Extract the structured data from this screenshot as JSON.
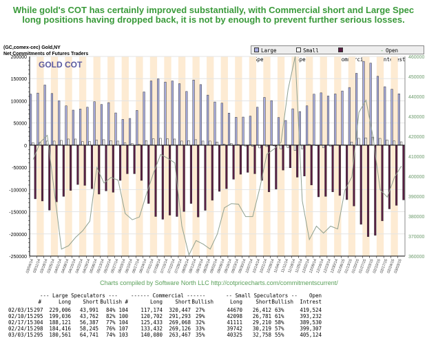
{
  "headline": [
    "While gold's COT has certainly improved substantially, with Commercial short and Large Spec",
    "long  positions  having dropped back, it is not by enough to prevent further serious losses."
  ],
  "chart_info": {
    "symbol": "(GC,comex-cec) Gold,NY",
    "subtitle": "Net Commitments of Futures Traders",
    "watermark": "GOLD COT"
  },
  "legend": [
    "Large Spec",
    "Small Spec",
    "Commercial",
    "Open Interest"
  ],
  "colors": {
    "large_spec": "#a9addf",
    "small_spec": "#ffffff",
    "commercial": "#5a1d44",
    "open_interest": "#8fa08f",
    "stripe": "#fdebd3",
    "headline": "#3a9a3a"
  },
  "credits": "Charts compiled by Software North LLC  http://cotpricecharts.com/commitmentscurrent/",
  "chart_data": {
    "type": "bar",
    "left_axis": {
      "ylim": [
        -250000,
        200000
      ],
      "ticks": [
        "200000",
        "150000",
        "100000",
        "50000",
        "0",
        "-50000",
        "-100000",
        "-150000",
        "-200000",
        "-250000"
      ]
    },
    "right_axis": {
      "ylim": [
        360000,
        460000
      ],
      "ticks": [
        "460000",
        "450000",
        "440000",
        "430000",
        "420000",
        "410000",
        "400000",
        "390000",
        "380000",
        "370000",
        "360000"
      ]
    },
    "grid": true,
    "legend_placement": "top-right",
    "categories": [
      "03/04/14",
      "03/11/14",
      "03/18/14",
      "03/25/14",
      "04/01/14",
      "04/08/14",
      "04/15/14",
      "04/22/14",
      "04/29/14",
      "05/06/14",
      "05/13/14",
      "05/20/14",
      "05/27/14",
      "06/03/14",
      "06/10/14",
      "06/17/14",
      "06/24/14",
      "07/01/14",
      "07/08/14",
      "07/15/14",
      "07/22/14",
      "07/29/14",
      "08/05/14",
      "08/12/14",
      "08/19/14",
      "08/26/14",
      "09/02/14",
      "09/09/14",
      "09/16/14",
      "09/23/14",
      "09/30/14",
      "10/07/14",
      "10/14/14",
      "10/21/14",
      "10/28/14",
      "11/04/14",
      "11/11/14",
      "11/18/14",
      "11/25/14",
      "12/02/14",
      "12/09/14",
      "12/16/14",
      "12/23/14",
      "12/30/14",
      "01/06/15",
      "01/13/15",
      "01/20/15",
      "01/27/15",
      "02/03/15",
      "02/10/15",
      "02/17/15",
      "02/24/15",
      "03/03/15"
    ],
    "series": [
      {
        "name": "Large Spec",
        "type": "bar",
        "axis": "left",
        "values": [
          115000,
          117500,
          135600,
          116500,
          100000,
          88700,
          79000,
          81500,
          85600,
          98000,
          91800,
          95900,
          72700,
          58200,
          60300,
          78400,
          120000,
          144800,
          149500,
          142300,
          144800,
          138700,
          121100,
          146900,
          136600,
          112900,
          97400,
          94800,
          72200,
          62900,
          63400,
          65500,
          85600,
          107700,
          100500,
          62400,
          55700,
          82000,
          75800,
          88700,
          115000,
          118000,
          110800,
          115500,
          122200,
          130000,
          162000,
          189000,
          185015,
          155274,
          131734,
          126171,
          115820
        ]
      },
      {
        "name": "Small Spec",
        "type": "bar",
        "axis": "left",
        "values": [
          5700,
          6200,
          9300,
          9300,
          10800,
          13900,
          13900,
          8200,
          8200,
          11300,
          12400,
          10300,
          9300,
          5200,
          4100,
          2000,
          10300,
          14400,
          15500,
          14400,
          13900,
          9300,
          10300,
          12400,
          9300,
          9300,
          7200,
          2600,
          4100,
          1500,
          -2000,
          -2600,
          -6200,
          -3100,
          -1500,
          -8200,
          -5200,
          -11900,
          -8200,
          2000,
          -1000,
          -5700,
          -2000,
          500,
          500,
          7200,
          15500,
          16500,
          18258,
          15317,
          11901,
          9523,
          7567
        ]
      },
      {
        "name": "Commercial",
        "type": "bar",
        "axis": "left",
        "values": [
          -121000,
          -125800,
          -146400,
          -127800,
          -115500,
          -102000,
          -88700,
          -90700,
          -98000,
          -110300,
          -103100,
          -106200,
          -79400,
          -64400,
          -64400,
          -79400,
          -131400,
          -160800,
          -167000,
          -157700,
          -160800,
          -149500,
          -131400,
          -161900,
          -146900,
          -124200,
          -104100,
          -98000,
          -76800,
          -65500,
          -61300,
          -64400,
          -79400,
          -105200,
          -99000,
          -56200,
          -51000,
          -72200,
          -69600,
          -89700,
          -116500,
          -115500,
          -105200,
          -113400,
          -122700,
          -137100,
          -178400,
          -206200,
          -203273,
          -170591,
          -143635,
          -135694,
          -123387
        ]
      },
      {
        "name": "Open Interest",
        "type": "line",
        "axis": "right",
        "values": [
          408400,
          417000,
          420500,
          392000,
          363500,
          365200,
          369400,
          372700,
          377500,
          404400,
          396600,
          399400,
          398000,
          381300,
          378200,
          379600,
          391100,
          401700,
          410900,
          409000,
          406700,
          375000,
          360600,
          367800,
          366000,
          363500,
          371000,
          384200,
          386300,
          386000,
          379800,
          379800,
          394000,
          411000,
          413600,
          417000,
          443500,
          460000,
          387700,
          368300,
          375000,
          371500,
          375000,
          373600,
          392800,
          399700,
          432000,
          438100,
          419524,
          393232,
          389530,
          399307,
          405124
        ]
      }
    ]
  },
  "table": {
    "group_headers": [
      "--- Large Speculators ---",
      "------ Commercial ------",
      "-- Small Speculators --",
      "Open"
    ],
    "columns": [
      "#",
      "Long",
      "Short",
      "Bullish",
      "#",
      "Long",
      "Short",
      "Bullish",
      "Long",
      "Short",
      "Bullish",
      "Intrest"
    ],
    "rows": [
      [
        "02/03/15",
        "297",
        "229,006",
        "43,991",
        "84%",
        "104",
        "117,174",
        "320,447",
        "27%",
        "44670",
        "26,412",
        "63%",
        "419,524"
      ],
      [
        "02/10/15",
        "295",
        "199,036",
        "43,762",
        "82%",
        "100",
        "120,702",
        "291,293",
        "29%",
        "42098",
        "26,781",
        "61%",
        "393,232"
      ],
      [
        "02/17/15",
        "304",
        "188,121",
        "56,387",
        "77%",
        "104",
        "125,433",
        "269,068",
        "32%",
        "41111",
        "29,210",
        "58%",
        "389,530"
      ],
      [
        "02/24/15",
        "298",
        "184,416",
        "58,245",
        "76%",
        "107",
        "133,432",
        "269,126",
        "33%",
        "39742",
        "30,219",
        "57%",
        "399,307"
      ],
      [
        "03/03/15",
        "295",
        "180,561",
        "64,741",
        "74%",
        "103",
        "140,080",
        "263,467",
        "35%",
        "40325",
        "32,758",
        "55%",
        "405,124"
      ]
    ]
  }
}
